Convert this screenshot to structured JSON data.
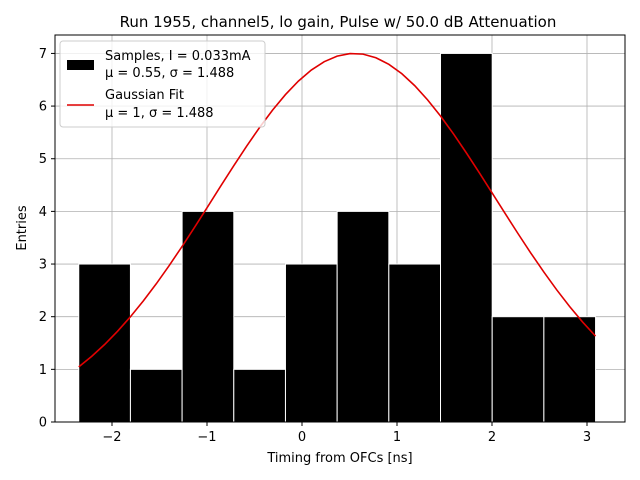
{
  "chart_data": {
    "type": "bar",
    "title": "Run 1955, channel5, lo gain, Pulse w/ 50.0 dB Attenuation",
    "xlabel": "Timing from OFCs [ns]",
    "ylabel": "Entries",
    "xlim": [
      -2.6,
      3.4
    ],
    "ylim": [
      0,
      7.35
    ],
    "xticks": [
      -2,
      -1,
      0,
      1,
      2,
      3
    ],
    "xtick_labels": [
      "−2",
      "−1",
      "0",
      "1",
      "2",
      "3"
    ],
    "yticks": [
      0,
      1,
      2,
      3,
      4,
      5,
      6,
      7
    ],
    "ytick_labels": [
      "0",
      "1",
      "2",
      "3",
      "4",
      "5",
      "6",
      "7"
    ],
    "grid": true,
    "legend_position": "top-left",
    "histogram": {
      "name_line1": "Samples, I = 0.033mA",
      "name_line2": "μ = 0.55, σ = 1.488",
      "color": "#000000",
      "bin_edges": [
        -2.35,
        -1.806,
        -1.262,
        -0.718,
        -0.174,
        0.37,
        0.914,
        1.458,
        2.002,
        2.546,
        3.09
      ],
      "counts": [
        3,
        1,
        4,
        1,
        3,
        4,
        3,
        7,
        2,
        2
      ]
    },
    "fit": {
      "name_line1": "Gaussian Fit",
      "name_line2": "μ = 1, σ = 1.488",
      "color": "#e00000",
      "amplitude": 7.0,
      "mu": 0.55,
      "sigma": 1.488,
      "x_range": [
        -2.35,
        3.09
      ]
    }
  }
}
